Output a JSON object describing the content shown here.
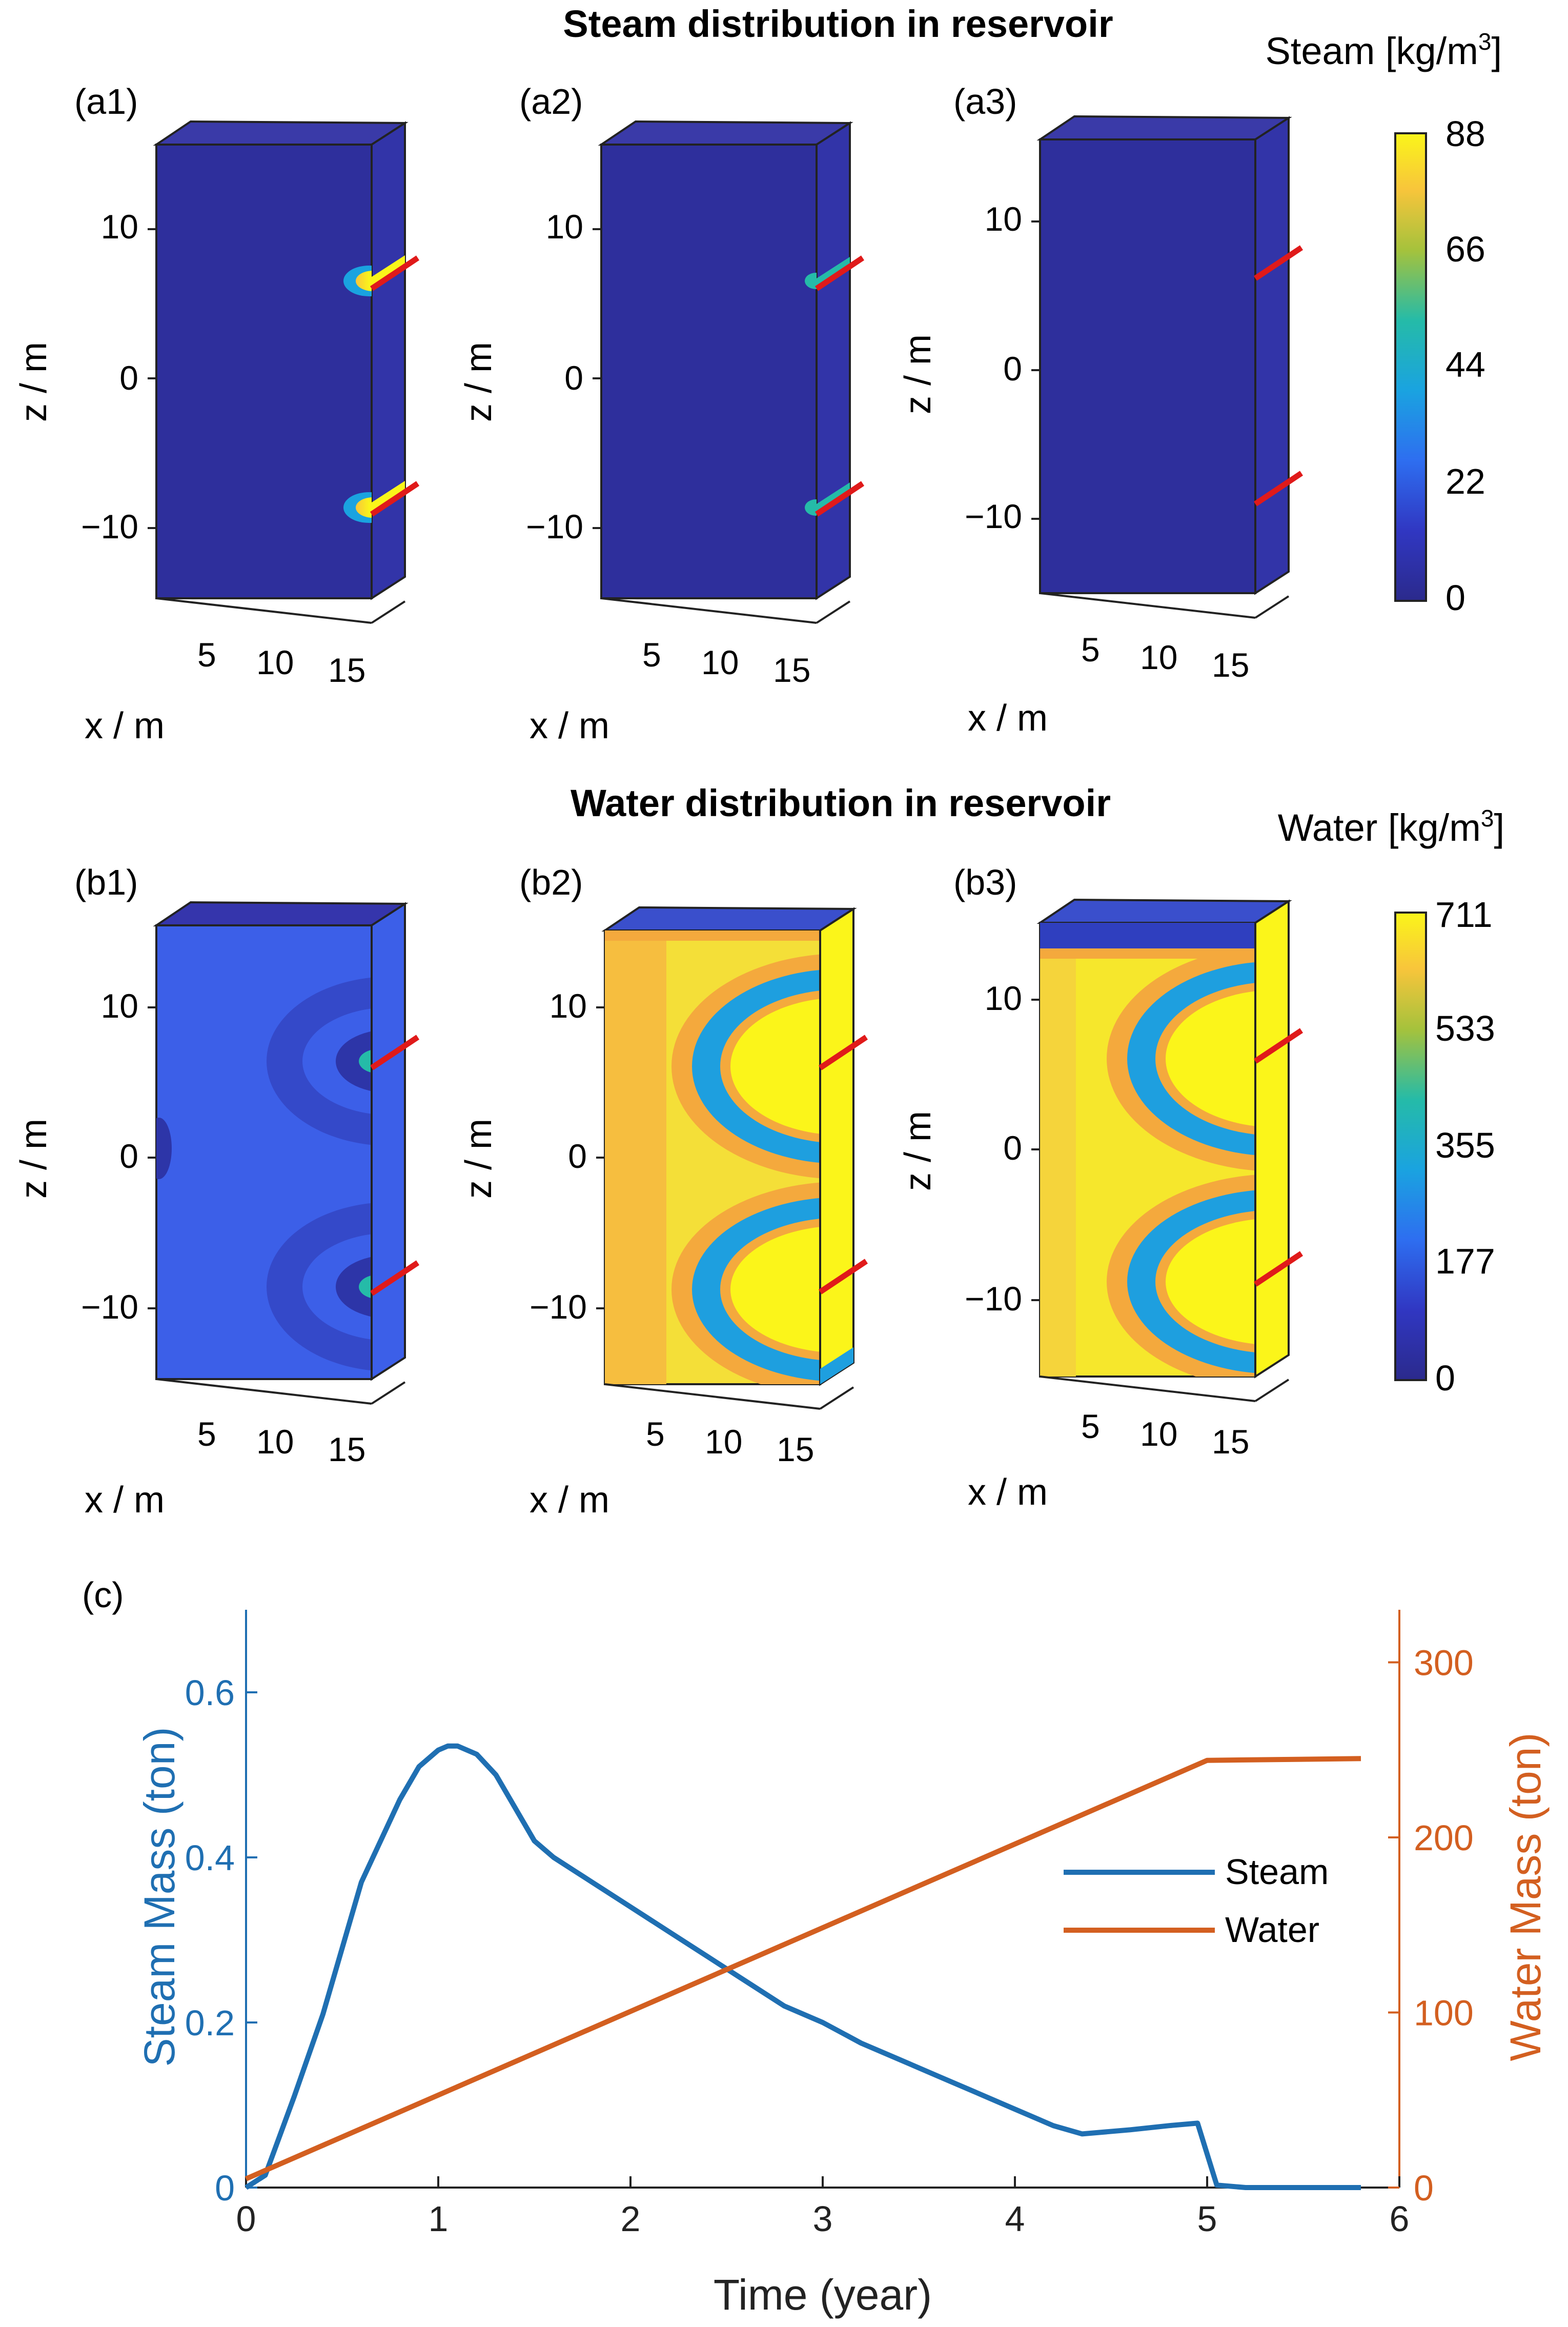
{
  "chart_data": [
    {
      "type": "heatmap",
      "panel_group": "steam",
      "title": "Steam distribution in reservoir",
      "colorbar": {
        "label": "Steam [kg/m3]",
        "label_prefix": "Steam [kg/m",
        "label_sup": "3",
        "label_suffix": "]",
        "ticks": [
          "88",
          "66",
          "44",
          "22",
          "0"
        ],
        "range": [
          0,
          88
        ]
      },
      "panels": [
        {
          "label": "(a1)",
          "well_glow": "strong"
        },
        {
          "label": "(a2)",
          "well_glow": "weak"
        },
        {
          "label": "(a3)",
          "well_glow": "none"
        }
      ],
      "xlabel": "x / m",
      "ylabel": "z / m",
      "xticks": [
        "5",
        "10",
        "15"
      ],
      "zticks": [
        "10",
        "0",
        "−10"
      ],
      "xlim": [
        0,
        15
      ],
      "zlim": [
        -15,
        15
      ]
    },
    {
      "type": "heatmap",
      "panel_group": "water",
      "title": "Water distribution in reservoir",
      "colorbar": {
        "label": "Water [kg/m3]",
        "label_prefix": "Water [kg/m",
        "label_sup": "3",
        "label_suffix": "]",
        "ticks": [
          "711",
          "533",
          "355",
          "177",
          "0"
        ],
        "range": [
          0,
          711
        ]
      },
      "panels": [
        {
          "label": "(b1)",
          "state": "early"
        },
        {
          "label": "(b2)",
          "state": "mid"
        },
        {
          "label": "(b3)",
          "state": "late"
        }
      ],
      "xlabel": "x / m",
      "ylabel": "z / m",
      "xticks": [
        "5",
        "10",
        "15"
      ],
      "zticks": [
        "10",
        "0",
        "−10"
      ],
      "xlim": [
        0,
        15
      ],
      "zlim": [
        -15,
        15
      ]
    },
    {
      "type": "line",
      "panel_label": "(c)",
      "xlabel": "Time (year)",
      "ylabel_left": "Steam Mass (ton)",
      "ylabel_right": "Water Mass (ton)",
      "xlim": [
        0,
        6
      ],
      "ylim_left": [
        0,
        0.7
      ],
      "ylim_right": [
        0,
        330
      ],
      "xticks": [
        "0",
        "1",
        "2",
        "3",
        "4",
        "5",
        "6"
      ],
      "yticks_left": [
        "0",
        "0.2",
        "0.4",
        "0.6"
      ],
      "yticks_right": [
        "0",
        "100",
        "200",
        "300"
      ],
      "legend_position": "right-middle",
      "series": [
        {
          "name": "Steam",
          "axis": "left",
          "color": "#1f6fb2",
          "x": [
            0,
            0.1,
            0.25,
            0.4,
            0.6,
            0.8,
            0.9,
            1.0,
            1.05,
            1.1,
            1.2,
            1.3,
            1.4,
            1.5,
            1.6,
            1.7,
            1.8,
            2.0,
            2.2,
            2.4,
            2.6,
            2.8,
            3.0,
            3.2,
            3.4,
            3.6,
            3.8,
            4.0,
            4.2,
            4.35,
            4.6,
            4.8,
            4.95,
            5.05,
            5.2,
            5.5,
            5.8
          ],
          "values": [
            0.0,
            0.015,
            0.11,
            0.21,
            0.37,
            0.47,
            0.51,
            0.53,
            0.535,
            0.535,
            0.525,
            0.5,
            0.46,
            0.42,
            0.4,
            0.385,
            0.37,
            0.34,
            0.31,
            0.28,
            0.25,
            0.22,
            0.2,
            0.175,
            0.155,
            0.135,
            0.115,
            0.095,
            0.075,
            0.065,
            0.07,
            0.075,
            0.078,
            0.003,
            0.0,
            0.0,
            0.0
          ]
        },
        {
          "name": "Water",
          "axis": "right",
          "color": "#d35f20",
          "x": [
            0,
            5.0,
            5.8
          ],
          "values": [
            5,
            244,
            245
          ]
        }
      ]
    }
  ]
}
